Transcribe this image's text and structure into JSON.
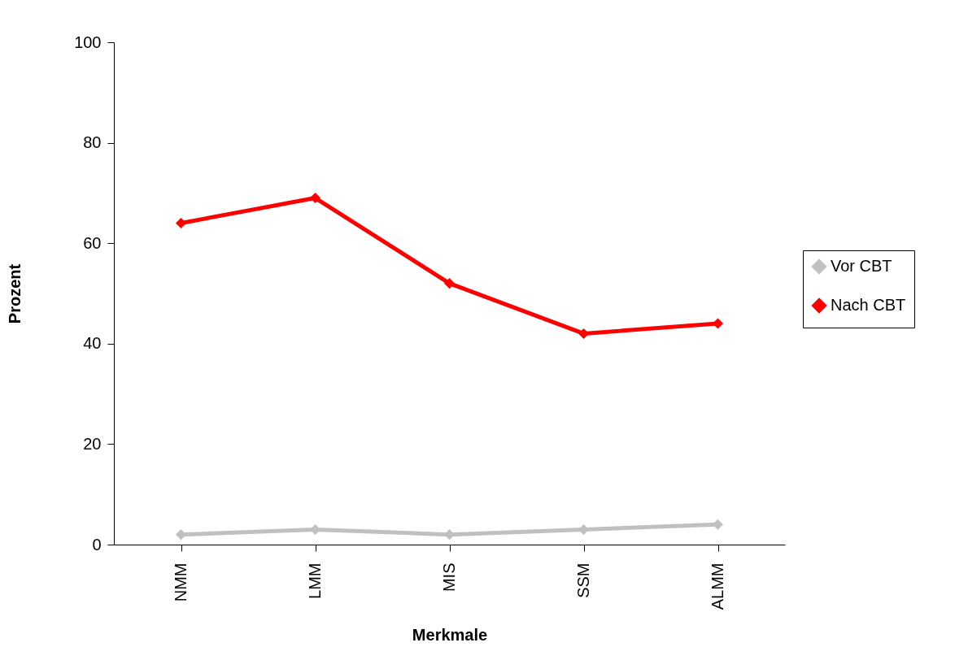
{
  "chart_data": {
    "type": "line",
    "xlabel": "Merkmale",
    "ylabel": "Prozent",
    "categories": [
      "NMM",
      "LMM",
      "MIS",
      "SSM",
      "ALMM"
    ],
    "series": [
      {
        "name": "Vor CBT",
        "color": "#c0c0c0",
        "values": [
          2,
          3,
          2,
          3,
          4
        ]
      },
      {
        "name": "Nach CBT",
        "color": "#ff0000",
        "values": [
          64,
          69,
          52,
          42,
          44
        ]
      }
    ],
    "ylim": [
      0,
      100
    ],
    "yticks": [
      0,
      20,
      40,
      60,
      80,
      100
    ],
    "grid": false,
    "legend": "right",
    "marker": "diamond",
    "line_style": "solid"
  }
}
